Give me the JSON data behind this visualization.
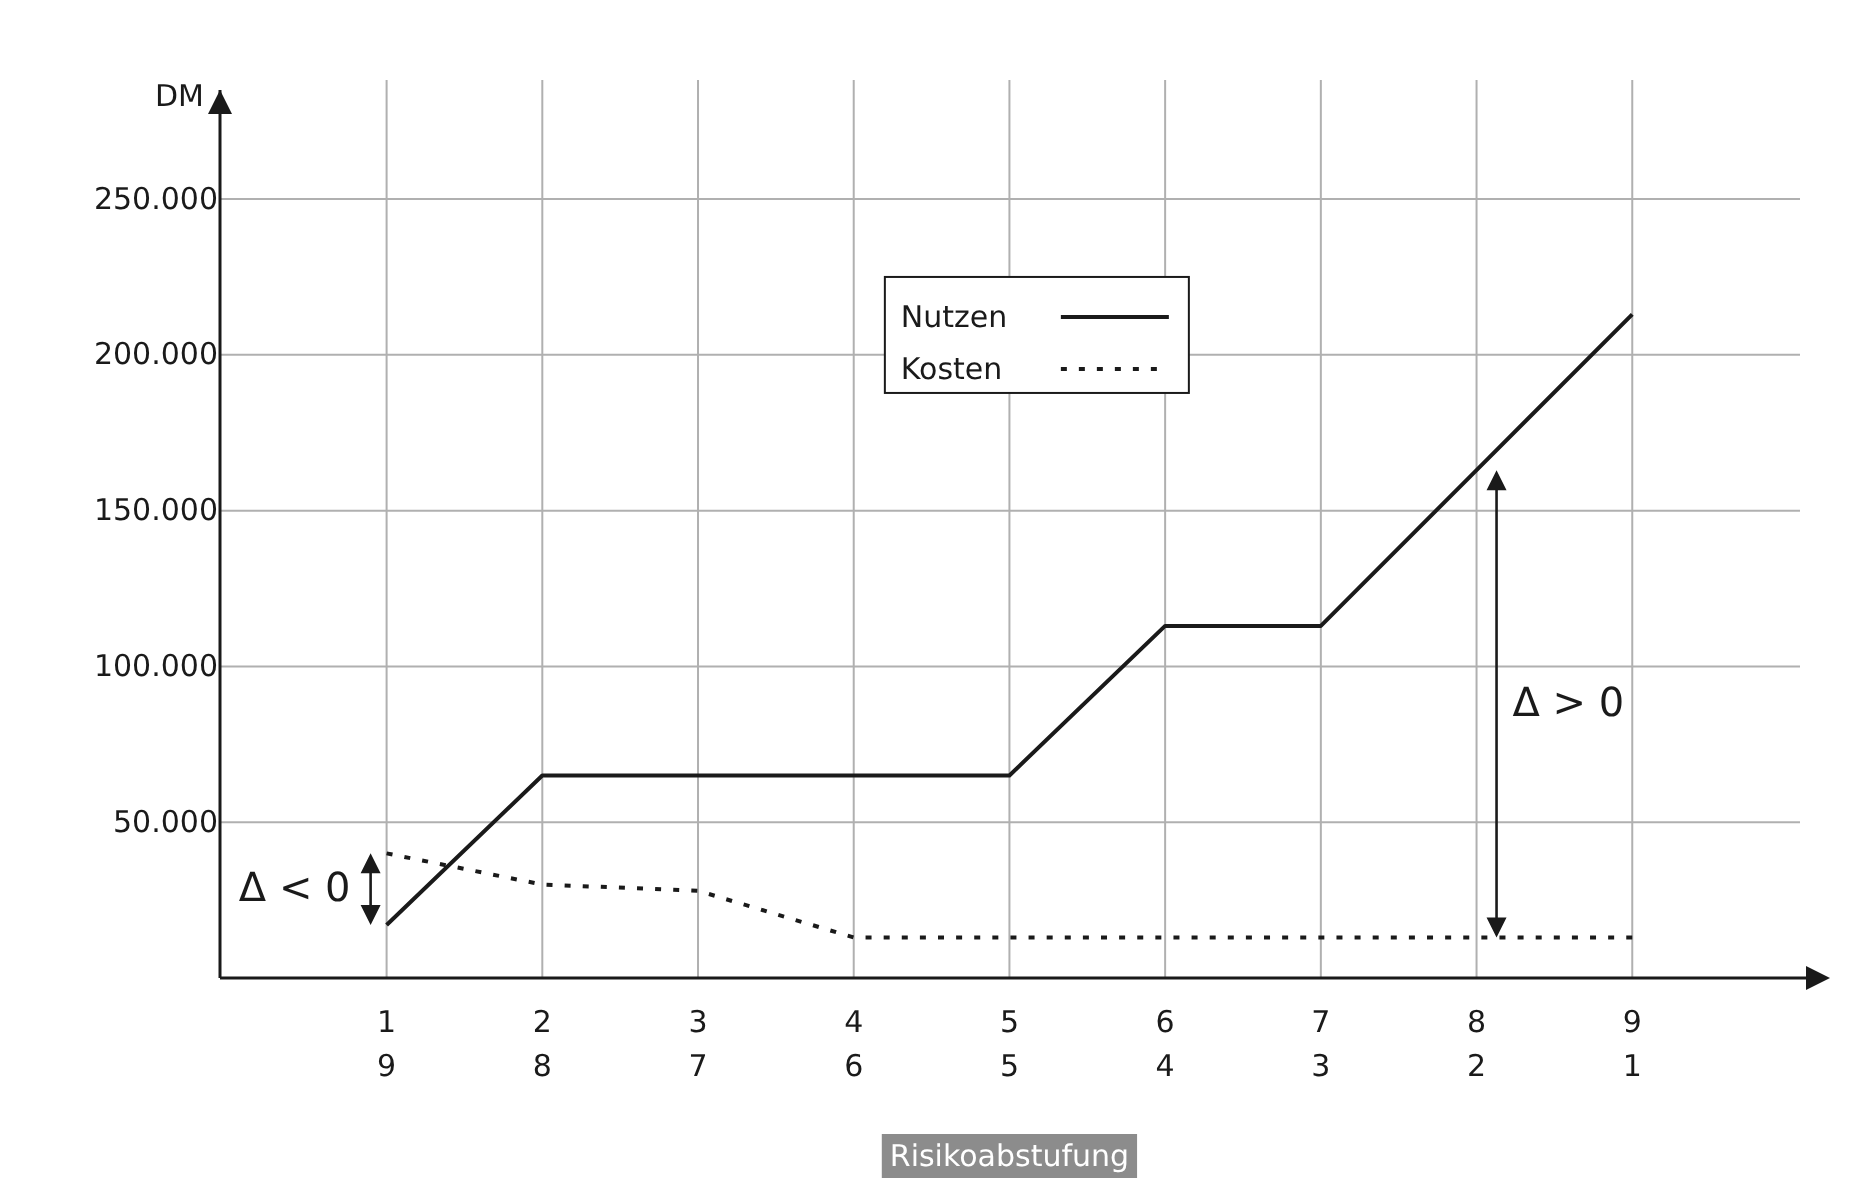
{
  "chart_data": {
    "type": "line",
    "ylabel": "DM",
    "xlabel": "Risikoabstufung",
    "categories": [
      "1\n9",
      "2\n8",
      "3\n7",
      "4\n6",
      "5\n5",
      "6\n4",
      "7\n3",
      "8\n2",
      "9\n1"
    ],
    "series": [
      {
        "name": "Nutzen",
        "color": "#1a1a1a",
        "line_style": "solid",
        "values": [
          17000,
          65000,
          65000,
          65000,
          65000,
          113000,
          113000,
          163000,
          213000
        ]
      },
      {
        "name": "Kosten",
        "color": "#1a1a1a",
        "line_style": "dotted",
        "values": [
          40000,
          30000,
          28000,
          13000,
          13000,
          13000,
          13000,
          13000,
          13000
        ]
      }
    ],
    "ylim": [
      0,
      285000
    ],
    "yticks": [
      {
        "value": 50000,
        "label": "50.000"
      },
      {
        "value": 100000,
        "label": "100.000"
      },
      {
        "value": 150000,
        "label": "150.000"
      },
      {
        "value": 200000,
        "label": "200.000"
      },
      {
        "value": 250000,
        "label": "250.000"
      }
    ],
    "grid": true,
    "legend": "top",
    "annotations": [
      "Δ < 0",
      "Δ > 0"
    ]
  }
}
